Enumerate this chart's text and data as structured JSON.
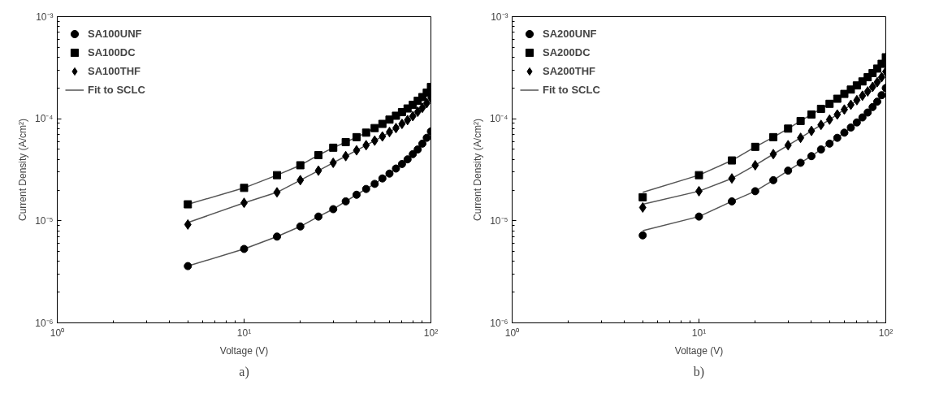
{
  "chart_data": [
    {
      "type": "scatter",
      "xlabel": "Voltage (V)",
      "ylabel": "Current Density (A/cm²)",
      "log": "xy",
      "grid": false,
      "legend": "top left",
      "xlim": [
        1,
        100
      ],
      "xticks": [
        {
          "value": 1,
          "label": "10⁰"
        },
        {
          "value": 10,
          "label": "10¹"
        },
        {
          "value": 100,
          "label": "10²"
        }
      ],
      "ylim": [
        1e-06,
        0.001
      ],
      "yticks": [
        {
          "value": 1e-06,
          "label": "10⁻⁶"
        },
        {
          "value": 1e-05,
          "label": "10⁻⁵"
        },
        {
          "value": 0.0001,
          "label": "10⁻⁴"
        },
        {
          "value": 0.001,
          "label": "10⁻³"
        }
      ],
      "x": [
        5,
        10,
        15,
        20,
        25,
        30,
        35,
        40,
        45,
        50,
        55,
        60,
        65,
        70,
        75,
        80,
        85,
        90,
        95,
        100
      ],
      "annotations": [
        "a)"
      ],
      "series": [
        {
          "name": "SA100UNF",
          "color": "#000000",
          "marker": "circle",
          "values": [
            3.6e-06,
            5.3e-06,
            7e-06,
            8.8e-06,
            1.1e-05,
            1.3e-05,
            1.55e-05,
            1.8e-05,
            2.05e-05,
            2.3e-05,
            2.6e-05,
            2.9e-05,
            3.25e-05,
            3.6e-05,
            4e-05,
            4.5e-05,
            5e-05,
            5.7e-05,
            6.5e-05,
            7.5e-05
          ]
        },
        {
          "name": "SA100DC",
          "color": "#000000",
          "marker": "square",
          "values": [
            1.45e-05,
            2.1e-05,
            2.8e-05,
            3.5e-05,
            4.4e-05,
            5.2e-05,
            5.9e-05,
            6.6e-05,
            7.3e-05,
            8.1e-05,
            8.9e-05,
            9.8e-05,
            0.000107,
            0.000116,
            0.000126,
            0.000137,
            0.00015,
            0.000163,
            0.00018,
            0.000205
          ]
        },
        {
          "name": "SA100THF",
          "color": "#000000",
          "marker": "diamond",
          "values": [
            9.2e-06,
            1.5e-05,
            1.9e-05,
            2.5e-05,
            3.1e-05,
            3.7e-05,
            4.3e-05,
            4.9e-05,
            5.5e-05,
            6.1e-05,
            6.7e-05,
            7.4e-05,
            8.1e-05,
            8.9e-05,
            9.7e-05,
            0.000106,
            0.000117,
            0.000128,
            0.000142,
            0.00016
          ]
        },
        {
          "name": "Fit to SCLC",
          "type": "line",
          "color": "#555555",
          "values": [
            3.6e-06,
            5.3e-06,
            7e-06,
            8.8e-06,
            1.1e-05,
            1.3e-05,
            1.55e-05,
            1.8e-05,
            2.05e-05,
            2.3e-05,
            2.6e-05,
            2.9e-05,
            3.25e-05,
            3.6e-05,
            4e-05,
            4.5e-05,
            5e-05,
            5.7e-05,
            6.5e-05,
            7.5e-05
          ]
        },
        {
          "type": "line",
          "color": "#555555",
          "values": [
            1.45e-05,
            2.1e-05,
            2.8e-05,
            3.5e-05,
            4.4e-05,
            5.2e-05,
            5.9e-05,
            6.6e-05,
            7.3e-05,
            8.1e-05,
            8.9e-05,
            9.8e-05,
            0.000107,
            0.000116,
            0.000126,
            0.000137,
            0.00015,
            0.000163,
            0.00018,
            0.000205
          ]
        },
        {
          "type": "line",
          "color": "#555555",
          "values": [
            9.6e-06,
            1.5e-05,
            1.9e-05,
            2.5e-05,
            3.1e-05,
            3.7e-05,
            4.3e-05,
            4.9e-05,
            5.5e-05,
            6.1e-05,
            6.7e-05,
            7.4e-05,
            8.1e-05,
            8.9e-05,
            9.7e-05,
            0.000106,
            0.000117,
            0.000128,
            0.000142,
            0.00016
          ]
        }
      ]
    },
    {
      "type": "scatter",
      "xlabel": "Voltage (V)",
      "ylabel": "Current Density (A/cm²)",
      "log": "xy",
      "grid": false,
      "legend": "top left",
      "xlim": [
        1,
        100
      ],
      "xticks": [
        {
          "value": 1,
          "label": "10⁰"
        },
        {
          "value": 10,
          "label": "10¹"
        },
        {
          "value": 100,
          "label": "10²"
        }
      ],
      "ylim": [
        1e-06,
        0.001
      ],
      "yticks": [
        {
          "value": 1e-06,
          "label": "10⁻⁶"
        },
        {
          "value": 1e-05,
          "label": "10⁻⁵"
        },
        {
          "value": 0.0001,
          "label": "10⁻⁴"
        },
        {
          "value": 0.001,
          "label": "10⁻³"
        }
      ],
      "x": [
        5,
        10,
        15,
        20,
        25,
        30,
        35,
        40,
        45,
        50,
        55,
        60,
        65,
        70,
        75,
        80,
        85,
        90,
        95,
        100
      ],
      "annotations": [
        "b)"
      ],
      "series": [
        {
          "name": "SA200UNF",
          "color": "#000000",
          "marker": "circle",
          "values": [
            7.2e-06,
            1.1e-05,
            1.55e-05,
            1.95e-05,
            2.5e-05,
            3.1e-05,
            3.7e-05,
            4.3e-05,
            5e-05,
            5.7e-05,
            6.5e-05,
            7.3e-05,
            8.2e-05,
            9.2e-05,
            0.000103,
            0.000115,
            0.00013,
            0.000147,
            0.00017,
            0.0002
          ]
        },
        {
          "name": "SA200DC",
          "color": "#000000",
          "marker": "square",
          "values": [
            1.7e-05,
            2.8e-05,
            3.9e-05,
            5.3e-05,
            6.6e-05,
            8e-05,
            9.5e-05,
            0.00011,
            0.000125,
            0.00014,
            0.000157,
            0.000175,
            0.000193,
            0.000212,
            0.000232,
            0.000255,
            0.00028,
            0.00031,
            0.000345,
            0.0004
          ]
        },
        {
          "name": "SA200THF",
          "color": "#000000",
          "marker": "diamond",
          "values": [
            1.35e-05,
            1.95e-05,
            2.6e-05,
            3.5e-05,
            4.5e-05,
            5.5e-05,
            6.5e-05,
            7.6e-05,
            8.7e-05,
            9.8e-05,
            0.00011,
            0.000123,
            0.000137,
            0.000152,
            0.000168,
            0.000185,
            0.000205,
            0.000228,
            0.000255,
            0.00029
          ]
        },
        {
          "name": "Fit to SCLC",
          "type": "line",
          "color": "#555555",
          "values": [
            8e-06,
            1.1e-05,
            1.55e-05,
            1.95e-05,
            2.5e-05,
            3.1e-05,
            3.7e-05,
            4.3e-05,
            5e-05,
            5.7e-05,
            6.5e-05,
            7.3e-05,
            8.2e-05,
            9.2e-05,
            0.000103,
            0.000115,
            0.00013,
            0.000147,
            0.00017,
            0.0002
          ]
        },
        {
          "type": "line",
          "color": "#555555",
          "values": [
            1.9e-05,
            2.8e-05,
            3.9e-05,
            5.3e-05,
            6.6e-05,
            8e-05,
            9.5e-05,
            0.00011,
            0.000125,
            0.00014,
            0.000157,
            0.000175,
            0.000193,
            0.000212,
            0.000232,
            0.000255,
            0.00028,
            0.00031,
            0.000345,
            0.0004
          ]
        },
        {
          "type": "line",
          "color": "#555555",
          "values": [
            1.45e-05,
            1.95e-05,
            2.6e-05,
            3.5e-05,
            4.5e-05,
            5.5e-05,
            6.5e-05,
            7.6e-05,
            8.7e-05,
            9.8e-05,
            0.00011,
            0.000123,
            0.000137,
            0.000152,
            0.000168,
            0.000185,
            0.000205,
            0.000228,
            0.000255,
            0.00029
          ]
        }
      ]
    }
  ]
}
